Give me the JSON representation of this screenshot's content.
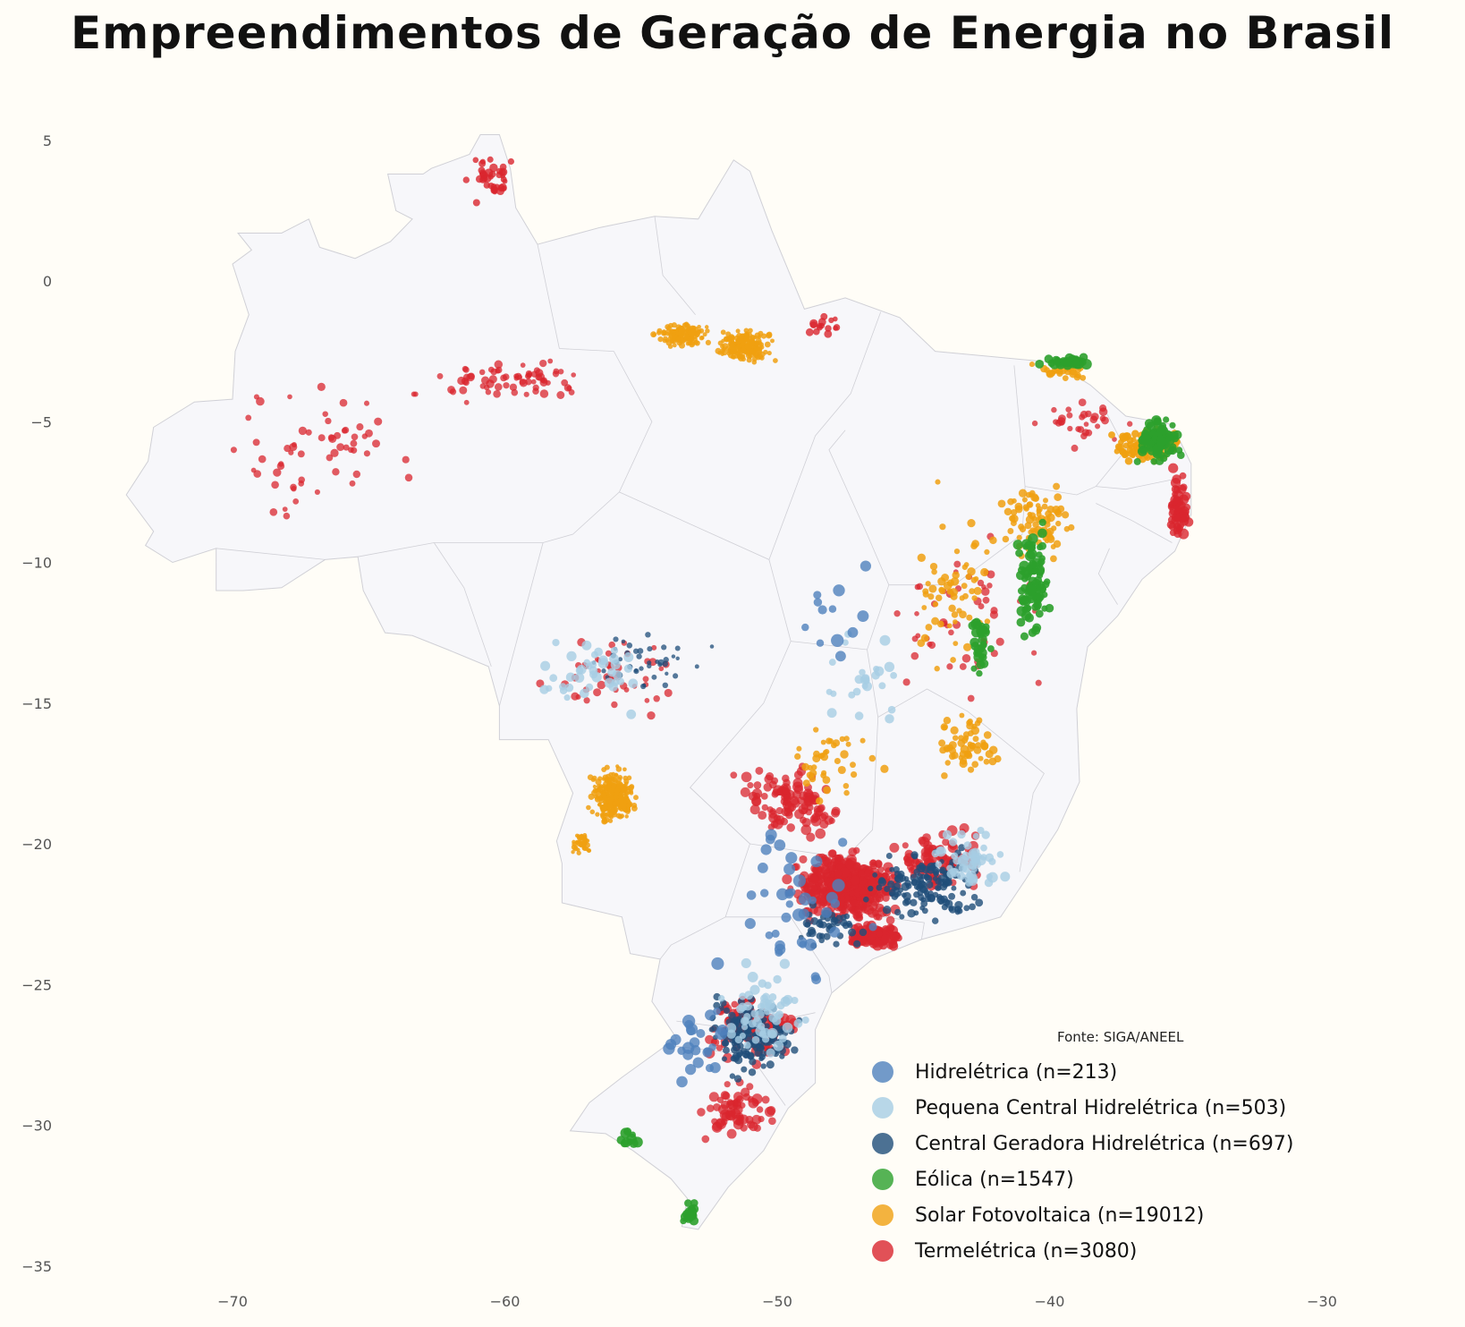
{
  "title": "Empreendimentos de Geração de Energia no Brasil",
  "source_note": "Fonte: SIGA/ANEEL",
  "chart_data": {
    "type": "scatter",
    "map": "Brazil (states)",
    "xlabel": "",
    "ylabel": "",
    "xlim": [
      -76,
      -26
    ],
    "ylim": [
      -35.5,
      5.5
    ],
    "x_ticks": [
      -70,
      -60,
      -50,
      -40,
      -30
    ],
    "y_ticks": [
      5,
      0,
      -5,
      -10,
      -15,
      -20,
      -25,
      -30,
      -35
    ],
    "grid": false,
    "legend_position": "bottom-right",
    "colors": {
      "land_fill": "#f7f7fa",
      "land_border": "#d0d0d6",
      "background": "#fffdf7"
    },
    "legend": [
      {
        "key": "hid",
        "label": "Hidrelétrica (n=213)",
        "color": "#4f81bd"
      },
      {
        "key": "pch",
        "label": "Pequena Central Hidrelétrica (n=503)",
        "color": "#a6cde3"
      },
      {
        "key": "cgh",
        "label": "Central Geradora Hidrelétrica (n=697)",
        "color": "#1f4e79"
      },
      {
        "key": "eol",
        "label": "Eólica (n=1547)",
        "color": "#2ca02c"
      },
      {
        "key": "sol",
        "label": "Solar Fotovoltaica (n=19012)",
        "color": "#f0a010"
      },
      {
        "key": "ter",
        "label": "Termelétrica (n=3080)",
        "color": "#d9262e"
      }
    ],
    "brazil_outline": [
      [
        -60.2,
        5.2
      ],
      [
        -59.8,
        4.0
      ],
      [
        -59.6,
        2.6
      ],
      [
        -58.8,
        1.3
      ],
      [
        -56.5,
        1.9
      ],
      [
        -54.5,
        2.3
      ],
      [
        -52.9,
        2.2
      ],
      [
        -51.6,
        4.3
      ],
      [
        -51.0,
        3.9
      ],
      [
        -50.2,
        1.8
      ],
      [
        -49.9,
        1.1
      ],
      [
        -49.0,
        -1.0
      ],
      [
        -47.5,
        -0.6
      ],
      [
        -45.5,
        -1.3
      ],
      [
        -44.2,
        -2.5
      ],
      [
        -42.0,
        -2.7
      ],
      [
        -39.8,
        -2.9
      ],
      [
        -38.5,
        -3.7
      ],
      [
        -37.2,
        -4.8
      ],
      [
        -35.5,
        -5.1
      ],
      [
        -34.8,
        -6.5
      ],
      [
        -34.8,
        -8.3
      ],
      [
        -35.4,
        -9.6
      ],
      [
        -36.6,
        -10.6
      ],
      [
        -37.5,
        -11.9
      ],
      [
        -38.6,
        -13.0
      ],
      [
        -39.0,
        -15.2
      ],
      [
        -38.9,
        -17.8
      ],
      [
        -39.7,
        -19.5
      ],
      [
        -40.9,
        -21.3
      ],
      [
        -41.8,
        -22.6
      ],
      [
        -43.2,
        -23.0
      ],
      [
        -44.7,
        -23.4
      ],
      [
        -46.5,
        -24.1
      ],
      [
        -48.0,
        -25.3
      ],
      [
        -48.6,
        -26.6
      ],
      [
        -48.6,
        -28.5
      ],
      [
        -49.6,
        -29.4
      ],
      [
        -50.5,
        -30.9
      ],
      [
        -51.8,
        -32.2
      ],
      [
        -52.9,
        -33.7
      ],
      [
        -53.5,
        -33.6
      ],
      [
        -53.3,
        -32.6
      ],
      [
        -53.9,
        -31.9
      ],
      [
        -55.3,
        -30.9
      ],
      [
        -56.3,
        -30.3
      ],
      [
        -57.6,
        -30.2
      ],
      [
        -56.9,
        -29.2
      ],
      [
        -55.7,
        -28.3
      ],
      [
        -54.7,
        -27.6
      ],
      [
        -53.7,
        -26.9
      ],
      [
        -54.6,
        -25.6
      ],
      [
        -54.3,
        -24.1
      ],
      [
        -55.4,
        -23.9
      ],
      [
        -55.7,
        -22.6
      ],
      [
        -57.9,
        -22.1
      ],
      [
        -57.9,
        -20.7
      ],
      [
        -58.1,
        -19.9
      ],
      [
        -57.5,
        -18.2
      ],
      [
        -58.4,
        -16.3
      ],
      [
        -60.2,
        -16.3
      ],
      [
        -60.2,
        -15.1
      ],
      [
        -60.6,
        -13.7
      ],
      [
        -62.1,
        -13.1
      ],
      [
        -63.4,
        -12.6
      ],
      [
        -64.4,
        -12.5
      ],
      [
        -65.2,
        -11.0
      ],
      [
        -65.4,
        -9.8
      ],
      [
        -66.6,
        -9.9
      ],
      [
        -68.2,
        -10.9
      ],
      [
        -69.6,
        -11.0
      ],
      [
        -70.6,
        -11.0
      ],
      [
        -70.6,
        -9.5
      ],
      [
        -72.2,
        -10.0
      ],
      [
        -73.2,
        -9.4
      ],
      [
        -72.9,
        -8.9
      ],
      [
        -73.9,
        -7.6
      ],
      [
        -73.1,
        -6.4
      ],
      [
        -72.9,
        -5.2
      ],
      [
        -71.4,
        -4.3
      ],
      [
        -70.0,
        -4.2
      ],
      [
        -69.9,
        -2.5
      ],
      [
        -69.4,
        -1.2
      ],
      [
        -69.6,
        -0.6
      ],
      [
        -70.0,
        0.6
      ],
      [
        -69.3,
        1.1
      ],
      [
        -69.8,
        1.7
      ],
      [
        -68.2,
        1.7
      ],
      [
        -67.2,
        2.2
      ],
      [
        -66.8,
        1.2
      ],
      [
        -65.5,
        0.8
      ],
      [
        -64.2,
        1.4
      ],
      [
        -63.4,
        2.2
      ],
      [
        -64.0,
        2.5
      ],
      [
        -64.3,
        3.8
      ],
      [
        -63.0,
        3.8
      ],
      [
        -62.7,
        4.0
      ],
      [
        -61.3,
        4.5
      ],
      [
        -60.9,
        5.2
      ],
      [
        -60.2,
        5.2
      ]
    ],
    "state_borders": [
      [
        [
          -58.0,
          -2.4
        ],
        [
          -56.0,
          -2.5
        ],
        [
          -54.6,
          -5.0
        ],
        [
          -55.8,
          -7.5
        ],
        [
          -57.5,
          -9.0
        ],
        [
          -58.6,
          -9.3
        ],
        [
          -62.6,
          -9.3
        ],
        [
          -65.4,
          -9.8
        ]
      ],
      [
        [
          -58.0,
          -2.4
        ],
        [
          -58.8,
          1.3
        ]
      ],
      [
        [
          -53.0,
          -1.2
        ],
        [
          -54.2,
          0.2
        ],
        [
          -54.5,
          2.3
        ]
      ],
      [
        [
          -55.8,
          -7.5
        ],
        [
          -50.3,
          -9.9
        ],
        [
          -48.6,
          -5.5
        ],
        [
          -47.3,
          -4.0
        ],
        [
          -46.2,
          -1.1
        ]
      ],
      [
        [
          -50.3,
          -9.9
        ],
        [
          -49.5,
          -12.8
        ],
        [
          -46.7,
          -13.1
        ],
        [
          -45.9,
          -10.8
        ],
        [
          -46.7,
          -9.0
        ],
        [
          -48.1,
          -6.0
        ],
        [
          -47.5,
          -5.3
        ]
      ],
      [
        [
          -45.9,
          -10.8
        ],
        [
          -43.5,
          -10.8
        ],
        [
          -41.0,
          -9.0
        ],
        [
          -40.9,
          -7.3
        ],
        [
          -41.3,
          -3.0
        ]
      ],
      [
        [
          -40.9,
          -7.3
        ],
        [
          -39.0,
          -7.6
        ],
        [
          -38.3,
          -7.3
        ],
        [
          -37.2,
          -6.0
        ],
        [
          -37.9,
          -4.7
        ]
      ],
      [
        [
          -38.3,
          -7.3
        ],
        [
          -37.2,
          -7.4
        ],
        [
          -35.2,
          -7.0
        ]
      ],
      [
        [
          -38.3,
          -7.9
        ],
        [
          -37.0,
          -8.5
        ],
        [
          -35.5,
          -9.3
        ]
      ],
      [
        [
          -37.8,
          -9.5
        ],
        [
          -38.2,
          -10.4
        ],
        [
          -37.5,
          -11.5
        ]
      ],
      [
        [
          -46.7,
          -13.1
        ],
        [
          -46.3,
          -15.5
        ],
        [
          -44.5,
          -14.5
        ],
        [
          -43.0,
          -15.3
        ],
        [
          -40.2,
          -17.5
        ],
        [
          -40.6,
          -18.2
        ],
        [
          -41.1,
          -21.0
        ]
      ],
      [
        [
          -49.5,
          -12.8
        ],
        [
          -50.5,
          -15.0
        ],
        [
          -52.2,
          -16.9
        ],
        [
          -53.2,
          -18.0
        ],
        [
          -51.0,
          -20.0
        ],
        [
          -47.5,
          -20.5
        ],
        [
          -46.5,
          -19.5
        ],
        [
          -46.3,
          -15.5
        ]
      ],
      [
        [
          -53.2,
          -18.0
        ],
        [
          -51.0,
          -20.0
        ],
        [
          -51.9,
          -22.6
        ],
        [
          -53.9,
          -23.6
        ],
        [
          -54.3,
          -24.1
        ]
      ],
      [
        [
          -51.9,
          -22.6
        ],
        [
          -49.5,
          -22.6
        ],
        [
          -48.1,
          -24.7
        ],
        [
          -48.0,
          -25.3
        ]
      ],
      [
        [
          -47.5,
          -20.5
        ],
        [
          -46.1,
          -22.6
        ],
        [
          -44.6,
          -22.8
        ],
        [
          -44.7,
          -23.4
        ]
      ],
      [
        [
          -53.7,
          -26.3
        ],
        [
          -51.4,
          -26.6
        ],
        [
          -48.6,
          -26.0
        ]
      ],
      [
        [
          -53.7,
          -27.2
        ],
        [
          -51.0,
          -27.5
        ],
        [
          -49.7,
          -29.3
        ]
      ],
      [
        [
          -62.6,
          -9.3
        ],
        [
          -61.5,
          -10.9
        ],
        [
          -60.5,
          -13.7
        ]
      ],
      [
        [
          -70.6,
          -9.5
        ],
        [
          -66.6,
          -9.9
        ]
      ],
      [
        [
          -58.6,
          -9.3
        ],
        [
          -60.2,
          -15.1
        ]
      ]
    ]
  }
}
